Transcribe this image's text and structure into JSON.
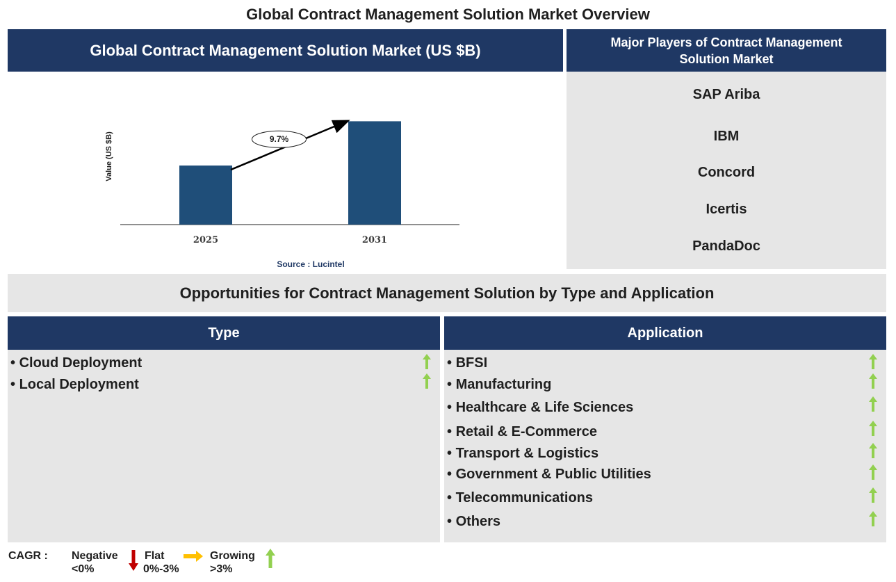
{
  "title": "Global Contract Management Solution Market Overview",
  "chart_panel": {
    "header": "Global Contract Management Solution Market (US $B)",
    "source": "Source : Lucintel"
  },
  "chart_data": {
    "type": "bar",
    "categories": [
      "2025",
      "2031"
    ],
    "values": [
      0.44,
      0.77
    ],
    "ylabel": "Value (US $B)",
    "ylim": [
      0,
      1
    ],
    "grid": false,
    "annotations": [
      {
        "text": "9.7%",
        "kind": "cagr-arrow",
        "from": "2025",
        "to": "2031"
      }
    ],
    "bar_color": "#1f4e79"
  },
  "players": {
    "header": "Major Players of Contract Management Solution Market",
    "items": [
      "SAP Ariba",
      "IBM",
      "Concord",
      "Icertis",
      "PandaDoc"
    ]
  },
  "opportunities": {
    "header": "Opportunities for Contract Management Solution by Type and Application",
    "type": {
      "header": "Type",
      "items": [
        "Cloud Deployment",
        "Local Deployment"
      ],
      "trend": [
        "growing",
        "growing"
      ]
    },
    "application": {
      "header": "Application",
      "items": [
        "BFSI",
        "Manufacturing",
        "Healthcare & Life Sciences",
        "Retail & E-Commerce",
        "Transport & Logistics",
        "Government & Public Utilities",
        "Telecommunications",
        "Others"
      ],
      "trend": [
        "growing",
        "growing",
        "growing",
        "growing",
        "growing",
        "growing",
        "growing",
        "growing"
      ]
    }
  },
  "legend": {
    "label": "CAGR :",
    "negative": {
      "name": "Negative",
      "range": "<0%",
      "icon": "down-arrow-icon",
      "color": "#c00000"
    },
    "flat": {
      "name": "Flat",
      "range": "0%-3%",
      "icon": "right-arrow-icon",
      "color": "#ffc000"
    },
    "growing": {
      "name": "Growing",
      "range": ">3%",
      "icon": "up-arrow-icon",
      "color": "#92d050"
    }
  },
  "colors": {
    "navy": "#1f3864",
    "panel_grey": "#e6e6e6",
    "bar": "#1f4e79"
  }
}
